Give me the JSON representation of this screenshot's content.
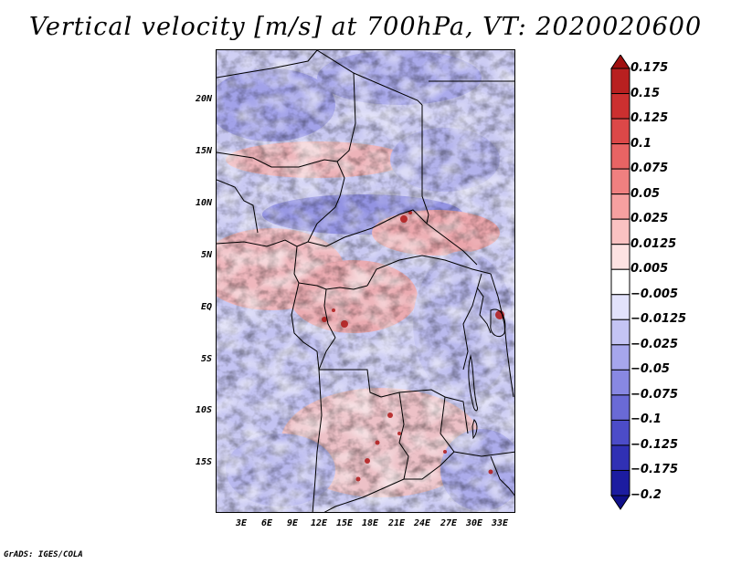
{
  "title": "Vertical velocity [m/s] at 700hPa, VT: 2020020600",
  "footer": "GrADS: IGES/COLA",
  "map": {
    "lat_labels": [
      "20N",
      "15N",
      "10N",
      "5N",
      "EQ",
      "5S",
      "10S",
      "15S"
    ],
    "lon_labels": [
      "3E",
      "6E",
      "9E",
      "12E",
      "15E",
      "18E",
      "21E",
      "24E",
      "27E",
      "30E",
      "33E"
    ]
  },
  "colorbar": {
    "levels": [
      "0.175",
      "0.15",
      "0.125",
      "0.1",
      "0.075",
      "0.05",
      "0.025",
      "0.0125",
      "0.005",
      "−0.005",
      "−0.0125",
      "−0.025",
      "−0.05",
      "−0.075",
      "−0.1",
      "−0.125",
      "−0.175",
      "−0.2"
    ],
    "colors": [
      "#a01010",
      "#b82020",
      "#cc3030",
      "#dc4848",
      "#e86464",
      "#f08080",
      "#f6a0a0",
      "#fac2c2",
      "#fde2e2",
      "#ffffff",
      "#e2e2fb",
      "#c4c4f4",
      "#a6a6ec",
      "#8888e2",
      "#6a6ad6",
      "#4c4cc8",
      "#3030b4",
      "#1c1ca0",
      "#10108a"
    ]
  }
}
